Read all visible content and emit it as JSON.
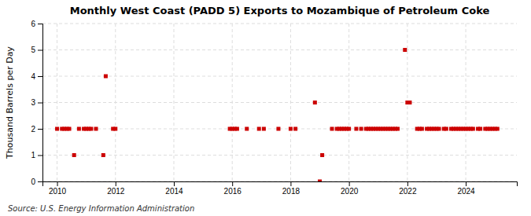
{
  "chart_data": {
    "type": "scatter",
    "title": "Monthly West Coast (PADD 5) Exports to Mozambique of Petroleum Coke",
    "ylabel": "Thousand Barrels per Day",
    "source": "Source: U.S. Energy Information Administration",
    "color": "#cc0000",
    "marker": "square",
    "grid": true,
    "xlim": [
      2009.5,
      2025.75
    ],
    "xticks": [
      2010,
      2012,
      2014,
      2016,
      2018,
      2020,
      2022,
      2024
    ],
    "ylim": [
      0,
      6
    ],
    "yticks": [
      0,
      1,
      2,
      3,
      4,
      5,
      6
    ],
    "x": [
      2010.0,
      2010.167,
      2010.25,
      2010.333,
      2010.417,
      2010.583,
      2010.75,
      2010.917,
      2011.0,
      2011.083,
      2011.167,
      2011.333,
      2011.583,
      2011.667,
      2011.917,
      2012.0,
      2015.917,
      2016.0,
      2016.083,
      2016.167,
      2016.5,
      2016.917,
      2017.083,
      2017.583,
      2018.0,
      2018.167,
      2018.833,
      2019.0,
      2019.083,
      2019.417,
      2019.583,
      2019.667,
      2019.75,
      2019.833,
      2019.917,
      2020.0,
      2020.25,
      2020.417,
      2020.583,
      2020.667,
      2020.75,
      2020.833,
      2020.917,
      2021.0,
      2021.083,
      2021.167,
      2021.25,
      2021.333,
      2021.417,
      2021.5,
      2021.583,
      2021.667,
      2021.917,
      2022.0,
      2022.083,
      2022.333,
      2022.417,
      2022.5,
      2022.667,
      2022.75,
      2022.833,
      2022.917,
      2023.0,
      2023.083,
      2023.25,
      2023.333,
      2023.5,
      2023.583,
      2023.667,
      2023.75,
      2023.833,
      2023.917,
      2024.0,
      2024.083,
      2024.167,
      2024.25,
      2024.417,
      2024.5,
      2024.667,
      2024.75,
      2024.833,
      2024.917,
      2025.0,
      2025.083
    ],
    "values": [
      2,
      2,
      2,
      2,
      2,
      1,
      2,
      2,
      2,
      2,
      2,
      2,
      1,
      4,
      2,
      2,
      2,
      2,
      2,
      2,
      2,
      2,
      2,
      2,
      2,
      2,
      3,
      0,
      1,
      2,
      2,
      2,
      2,
      2,
      2,
      2,
      2,
      2,
      2,
      2,
      2,
      2,
      2,
      2,
      2,
      2,
      2,
      2,
      2,
      2,
      2,
      2,
      5,
      3,
      3,
      2,
      2,
      2,
      2,
      2,
      2,
      2,
      2,
      2,
      2,
      2,
      2,
      2,
      2,
      2,
      2,
      2,
      2,
      2,
      2,
      2,
      2,
      2,
      2,
      2,
      2,
      2,
      2,
      2
    ]
  }
}
